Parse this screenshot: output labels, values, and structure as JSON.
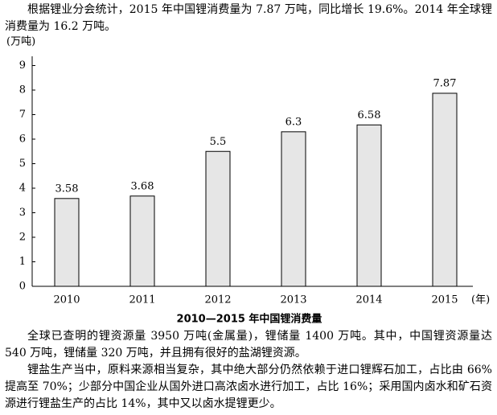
{
  "paragraphs": [
    "根据锂业分会统计，2015 年中国锂消费量为 7.87 万吨，同比增长 19.6%。2014 年全球锂消费量为 16.2 万吨。",
    "全球已查明的锂资源量 3950 万吨(金属量)，锂储量 1400 万吨。其中，中国锂资源量达 540 万吨，锂储量 320 万吨，并且拥有很好的盐湖锂资源。",
    "锂盐生产当中，原料来源相当复杂，其中绝大部分仍然依赖于进口锂辉石加工，占比由 66%提高至 70%；少部分中国企业从国外进口高浓卤水进行加工，占比 16%；采用国内卤水和矿石资源进行锂盐生产的占比 14%，其中又以卤水提锂更少。"
  ],
  "chart_data": {
    "type": "bar",
    "title": "2010—2015 年中国锂消费量",
    "y_label": "(万吨)",
    "x_label": "(年)",
    "categories": [
      "2010",
      "2011",
      "2012",
      "2013",
      "2014",
      "2015"
    ],
    "values": [
      3.58,
      3.68,
      5.5,
      6.3,
      6.58,
      7.87
    ],
    "color": "#e6e6e6",
    "ylim": [
      0,
      9
    ],
    "yticks": [
      0,
      1,
      2,
      3,
      4,
      5,
      6,
      7,
      8,
      9
    ]
  }
}
